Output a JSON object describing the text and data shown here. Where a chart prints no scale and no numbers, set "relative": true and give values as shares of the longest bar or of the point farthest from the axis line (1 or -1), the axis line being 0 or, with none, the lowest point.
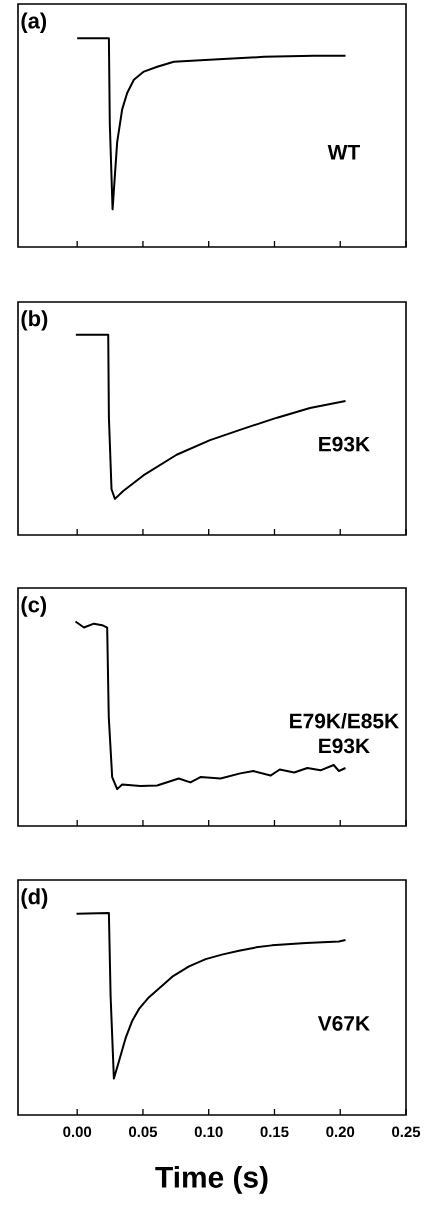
{
  "chart_data": [
    {
      "type": "line",
      "relative": true,
      "color": "#000000",
      "annotations": [
        "(a)",
        "WT"
      ],
      "xlim": [
        -0.045,
        0.25
      ],
      "xticks": [
        0,
        0.05,
        0.1,
        0.15,
        0.2,
        0.25
      ],
      "tick_labels": false,
      "x": [
        0,
        0.0241,
        0.0248,
        0.0269,
        0.0304,
        0.0342,
        0.038,
        0.0431,
        0.0507,
        0.0609,
        0.0735,
        0.104,
        0.142,
        0.18,
        0.204
      ],
      "values": [
        1,
        1,
        0.5,
        0,
        0.393,
        0.584,
        0.68,
        0.757,
        0.805,
        0.833,
        0.862,
        0.875,
        0.891,
        0.897,
        0.897
      ]
    },
    {
      "type": "line",
      "relative": true,
      "color": "#000000",
      "annotations": [
        "(b)",
        "E93K"
      ],
      "xlim": [
        -0.045,
        0.25
      ],
      "xticks": [
        0,
        0.05,
        0.1,
        0.15,
        0.2,
        0.25
      ],
      "tick_labels": false,
      "x": [
        -0.001,
        0.0236,
        0.0241,
        0.0261,
        0.0287,
        0.035,
        0.0503,
        0.0756,
        0.101,
        0.126,
        0.152,
        0.177,
        0.204
      ],
      "values": [
        1,
        1,
        0.5,
        0.059,
        0,
        0.048,
        0.143,
        0.269,
        0.358,
        0.427,
        0.495,
        0.554,
        0.596
      ]
    },
    {
      "type": "line",
      "relative": true,
      "color": "#000000",
      "annotations": [
        "(c)",
        "E79K/E85K E93K"
      ],
      "xlim": [
        -0.045,
        0.25
      ],
      "xticks": [
        0,
        0.05,
        0.1,
        0.15,
        0.2,
        0.25
      ],
      "tick_labels": false,
      "x": [
        -0.0013,
        0.0051,
        0.0127,
        0.019,
        0.0228,
        0.024,
        0.0266,
        0.0304,
        0.0342,
        0.0481,
        0.0608,
        0.0772,
        0.0861,
        0.0937,
        0.109,
        0.124,
        0.134,
        0.147,
        0.154,
        0.165,
        0.175,
        0.185,
        0.195,
        0.199,
        0.204
      ],
      "values": [
        1,
        0.964,
        0.987,
        0.978,
        0.964,
        0.432,
        0.072,
        0,
        0.027,
        0.018,
        0.022,
        0.063,
        0.04,
        0.072,
        0.063,
        0.094,
        0.108,
        0.081,
        0.117,
        0.099,
        0.126,
        0.112,
        0.144,
        0.108,
        0.126
      ]
    },
    {
      "type": "line",
      "relative": true,
      "color": "#000000",
      "annotations": [
        "(d)",
        "V67K"
      ],
      "xlabel": "Time (s)",
      "xlim": [
        -0.045,
        0.25
      ],
      "xticks": [
        {
          "value": 0,
          "label": "0.00"
        },
        0.05,
        {
          "value": 0.1,
          "label": "0.10"
        },
        0.15,
        {
          "value": 0.2,
          "label": "0.20"
        },
        0.25
      ],
      "x": [
        -0.0005,
        0.0241,
        0.0254,
        0.0279,
        0.0317,
        0.0368,
        0.0419,
        0.047,
        0.0546,
        0.0622,
        0.0723,
        0.085,
        0.0977,
        0.11,
        0.123,
        0.136,
        0.148,
        0.174,
        0.199,
        0.204
      ],
      "values": [
        0.996,
        1,
        0.5,
        0,
        0.103,
        0.244,
        0.35,
        0.421,
        0.492,
        0.545,
        0.616,
        0.678,
        0.722,
        0.749,
        0.772,
        0.793,
        0.805,
        0.819,
        0.828,
        0.837
      ]
    }
  ]
}
